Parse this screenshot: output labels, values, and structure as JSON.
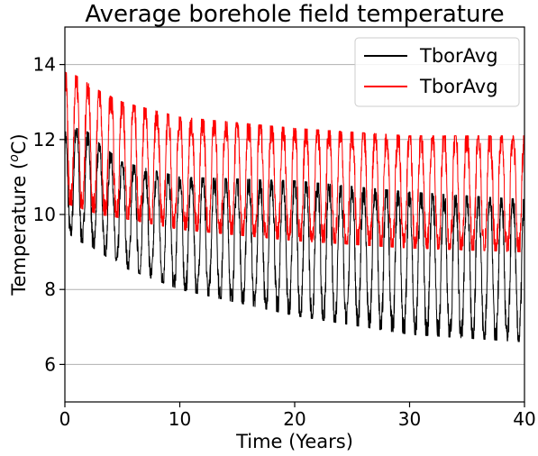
{
  "chart_data": {
    "type": "line",
    "title": "Average borehole field temperature",
    "xlabel": "Time (Years)",
    "ylabel_main": "Temperature (",
    "ylabel_unit_sup": "o",
    "ylabel_unit": "C)",
    "xlim": [
      0,
      40
    ],
    "ylim": [
      5,
      15
    ],
    "xticks": [
      0,
      10,
      20,
      30,
      40
    ],
    "yticks": [
      6,
      8,
      10,
      12,
      14
    ],
    "grid_y": true,
    "legend_position": "top-right",
    "cycles_per_year": 1,
    "series": [
      {
        "name": "TborAvg",
        "color": "#000000",
        "envelope": {
          "years": [
            0,
            1,
            2,
            3,
            5,
            10,
            20,
            30,
            40
          ],
          "upper": [
            12.2,
            12.3,
            12.2,
            11.9,
            11.4,
            11.0,
            10.9,
            10.6,
            10.4
          ],
          "lower": [
            9.6,
            9.3,
            9.2,
            9.0,
            8.6,
            8.0,
            7.3,
            6.8,
            6.6
          ]
        }
      },
      {
        "name": "TborAvg",
        "color": "#ff0000",
        "envelope": {
          "years": [
            0,
            1,
            2,
            3,
            5,
            10,
            20,
            30,
            40
          ],
          "upper": [
            13.8,
            13.7,
            13.5,
            13.3,
            13.0,
            12.6,
            12.3,
            12.1,
            12.1
          ],
          "lower": [
            10.3,
            10.2,
            10.1,
            10.0,
            9.9,
            9.6,
            9.3,
            9.1,
            9.0
          ]
        }
      }
    ]
  }
}
